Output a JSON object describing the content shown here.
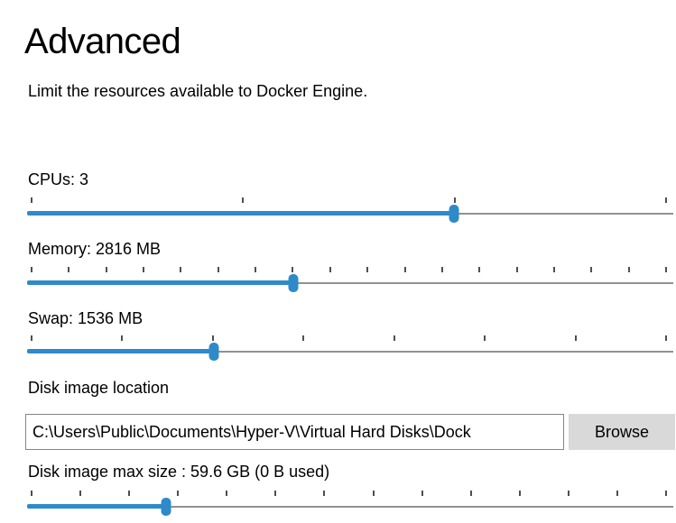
{
  "page": {
    "title": "Advanced",
    "subtitle": "Limit the resources available to Docker Engine."
  },
  "colors": {
    "accent": "#2e8ac8",
    "track_gray": "#919191",
    "tick": "#4f4f4f",
    "button_bg": "#d9d9d9"
  },
  "sliders": [
    {
      "id": "cpus",
      "label": "CPUs: 3",
      "tick_count": 4,
      "fraction": 0.6606
    },
    {
      "id": "memory",
      "label": "Memory: 2816 MB",
      "tick_count": 18,
      "fraction": 0.412
    },
    {
      "id": "swap",
      "label": "Swap: 1536 MB",
      "tick_count": 8,
      "fraction": 0.2891
    },
    {
      "id": "disk_max",
      "label": "Disk image max size : 59.6 GB (0 B  used)",
      "tick_count": 14,
      "fraction": 0.2151
    }
  ],
  "disk_location": {
    "label": "Disk image location",
    "value": "C:\\Users\\Public\\Documents\\Hyper-V\\Virtual Hard Disks\\Dock",
    "browse_label": "Browse"
  }
}
